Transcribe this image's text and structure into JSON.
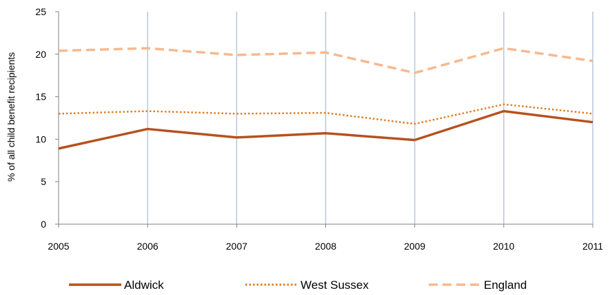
{
  "chart_data": {
    "type": "line",
    "title": "",
    "xlabel": "",
    "ylabel": "% of all child benefit recipients",
    "x": [
      "2005",
      "2006",
      "2007",
      "2008",
      "2009",
      "2010",
      "2011"
    ],
    "y_ticks": [
      "0",
      "5",
      "10",
      "15",
      "20",
      "25"
    ],
    "ylim": [
      0,
      25
    ],
    "grid": "vertical",
    "legend_position": "bottom",
    "series": [
      {
        "name": "Aldwick",
        "values": [
          8.9,
          11.2,
          10.2,
          10.7,
          9.9,
          13.3,
          12.0
        ],
        "color": "#b5521e",
        "style": "solid"
      },
      {
        "name": "West Sussex",
        "values": [
          13.0,
          13.3,
          13.0,
          13.1,
          11.8,
          14.1,
          13.0
        ],
        "color": "#e07b20",
        "style": "dotted"
      },
      {
        "name": "England",
        "values": [
          20.4,
          20.7,
          19.9,
          20.2,
          17.8,
          20.7,
          19.2
        ],
        "color": "#f5b98f",
        "style": "dashed"
      }
    ],
    "colors": {
      "grid": "#b8c7d9",
      "axis": "#808080"
    }
  }
}
